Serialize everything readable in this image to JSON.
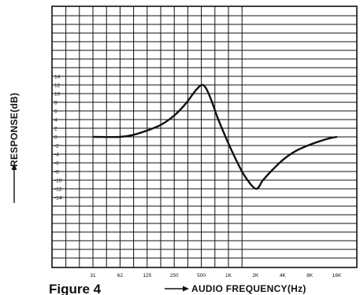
{
  "chart_data": {
    "type": "line",
    "title": "",
    "figure_label": "Figure 4",
    "xlabel": "AUDIO FREQUENCY(Hz)",
    "ylabel": "RESPONSE(dB)",
    "x_scale": "log",
    "x_ticks": [
      "31",
      "62",
      "125",
      "250",
      "500",
      "1K",
      "2K",
      "4K",
      "8K",
      "16K"
    ],
    "y_ticks": [
      "14",
      "12",
      "10",
      "8",
      "6",
      "4",
      "2",
      "0",
      "-2",
      "-4",
      "-6",
      "-8",
      "-10",
      "-12",
      "-14"
    ],
    "ylim": [
      -16,
      16
    ],
    "grid": true,
    "series": [
      {
        "x": [
          31,
          62,
          88,
          125,
          177,
          250,
          330,
          420,
          500,
          560,
          640,
          750,
          900,
          1000,
          1200,
          1500,
          2000,
          2400,
          3000,
          4000,
          5500,
          8000,
          11000,
          14000,
          16000
        ],
        "y": [
          0,
          0,
          0.5,
          1.5,
          2.8,
          5,
          7.6,
          10.5,
          12,
          11.2,
          8.5,
          4.5,
          0.5,
          -1.7,
          -5.2,
          -9,
          -12,
          -10,
          -7.8,
          -5.3,
          -3.3,
          -1.8,
          -0.8,
          -0.2,
          0
        ]
      }
    ]
  }
}
